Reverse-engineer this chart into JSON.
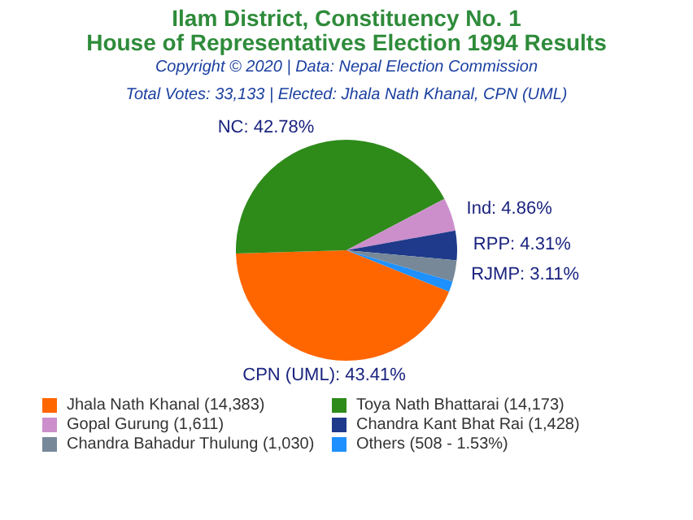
{
  "chart_data": {
    "type": "pie",
    "title": "Ilam District, Constituency No. 1\nHouse of Representatives Election 1994 Results",
    "subtitle": "Copyright © 2020 | Data: Nepal Election Commission",
    "annotations": [
      "Total Votes: 33,133 | Elected: Jhala Nath Khanal, CPN (UML)"
    ],
    "categories": [
      "Jhala Nath Khanal (14,383)",
      "Toya Nath Bhattarai (14,173)",
      "Gopal Gurung (1,611)",
      "Chandra Kant Bhat Rai (1,428)",
      "Chandra Bahadur Thulung (1,030)",
      "Others (508 - 1.53%)"
    ],
    "values": [
      43.41,
      42.78,
      4.86,
      4.31,
      3.11,
      1.53
    ],
    "colors": [
      "#ff6600",
      "#2e8b1a",
      "#cc8fcc",
      "#1f3a8a",
      "#778899",
      "#1e90ff"
    ],
    "value_labels": [
      "CPN (UML): 43.41%",
      "NC: 42.78%",
      "Ind: 4.86%",
      "RPP: 4.31%",
      "RJMP: 3.11%",
      null
    ],
    "legend": "bottom"
  }
}
